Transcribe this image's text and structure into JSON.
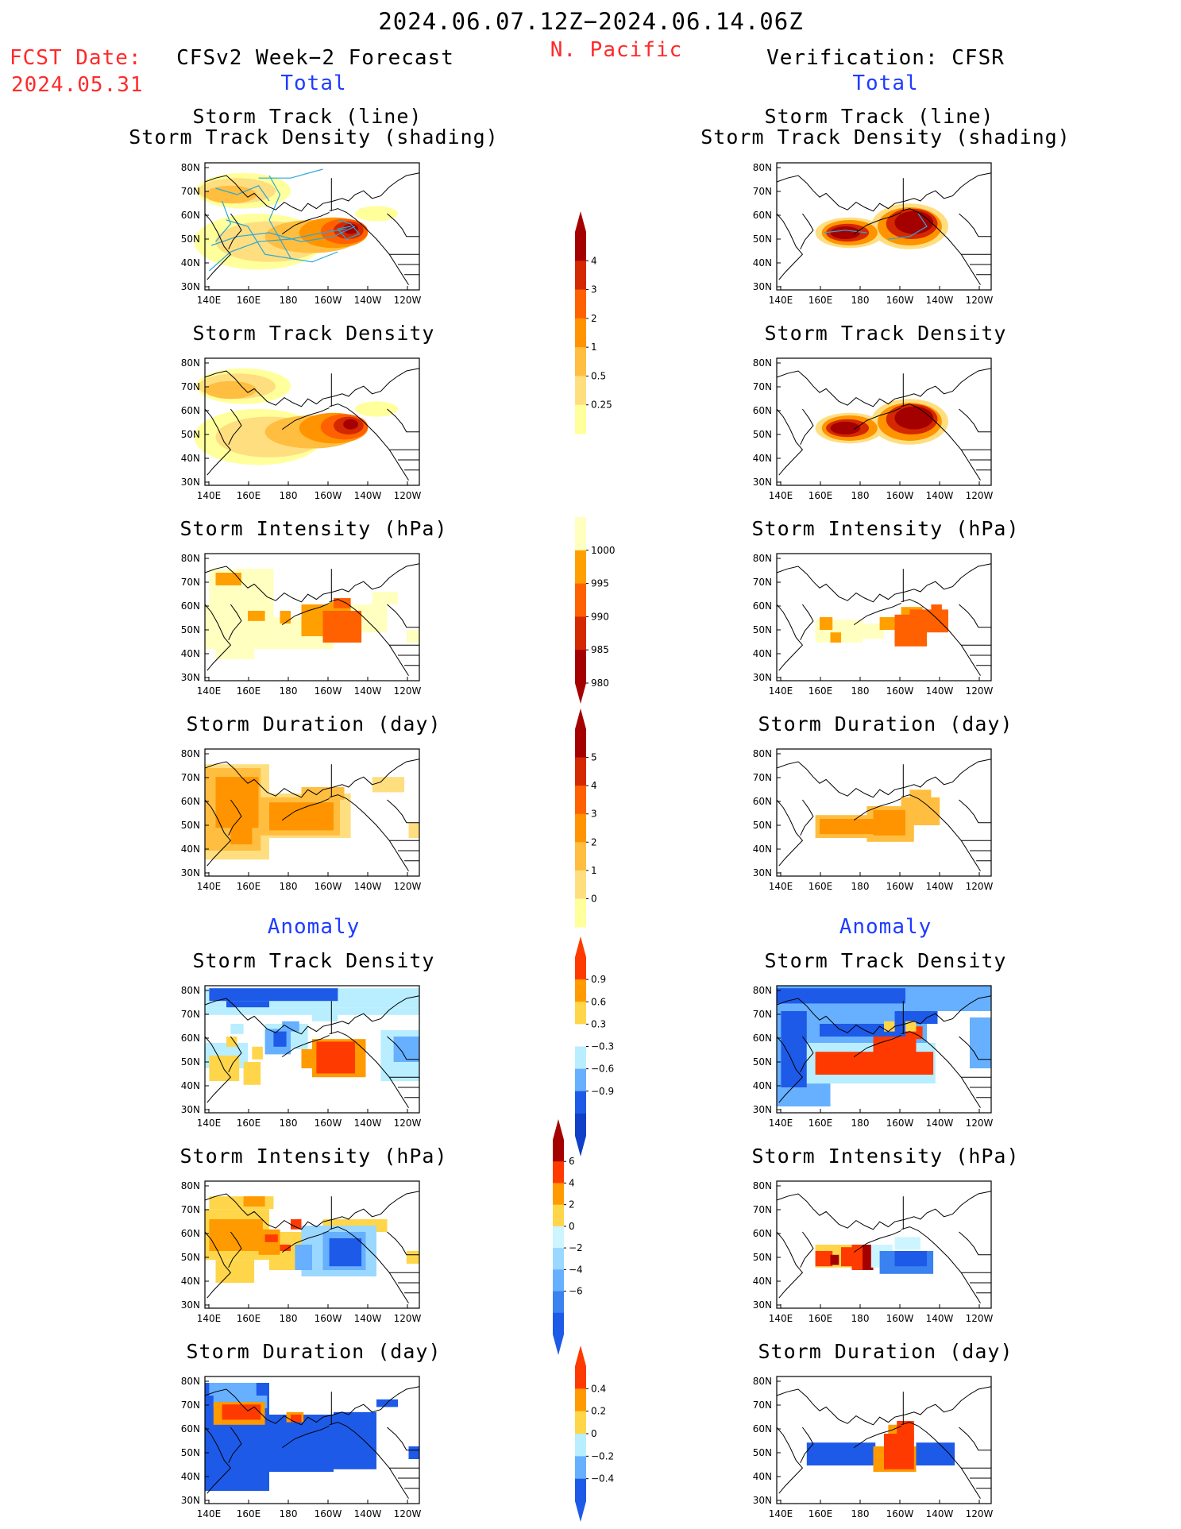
{
  "header": {
    "date_range": "2024.06.07.12Z−2024.06.14.06Z",
    "region": "N. Pacific",
    "fcst_label": "FCST Date:",
    "fcst_date": "2024.05.31",
    "left_title": "CFSv2 Week−2 Forecast",
    "right_title": "Verification: CFSR",
    "total_label": "Total",
    "anomaly_label": "Anomaly"
  },
  "axes": {
    "lat_ticks": [
      "80N",
      "70N",
      "60N",
      "50N",
      "40N",
      "30N"
    ],
    "lon_ticks": [
      "140E",
      "160E",
      "180",
      "160W",
      "140W",
      "120W"
    ]
  },
  "panel_titles": {
    "track_line": "Storm Track (line)",
    "track_shading": "Storm Track Density (shading)",
    "density": "Storm Track Density",
    "intensity": "Storm Intensity (hPa)",
    "duration": "Storm Duration (day)"
  },
  "colors": {
    "title_red": "#ff2a2a",
    "title_blue": "#1e3cff",
    "track_line": "#2aa8d8"
  },
  "colorbars": [
    {
      "id": "density_total",
      "arrow_top": true,
      "arrow_bottom": false,
      "labels": [
        "4",
        "3",
        "2",
        "1",
        "0.5",
        "0.25"
      ],
      "colors": [
        "#a50000",
        "#d42800",
        "#ff6000",
        "#ff9400",
        "#ffbe40",
        "#ffde80",
        "#ffff9c"
      ]
    },
    {
      "id": "intensity_total",
      "arrow_top": false,
      "arrow_bottom": true,
      "labels": [
        "1000",
        "995",
        "990",
        "985",
        "980"
      ],
      "colors": [
        "#ffffc0",
        "#ffa000",
        "#ff6000",
        "#d42800",
        "#a50000"
      ]
    },
    {
      "id": "duration_total",
      "arrow_top": true,
      "arrow_bottom": false,
      "labels": [
        "5",
        "4",
        "3",
        "2",
        "1",
        "0"
      ],
      "colors": [
        "#a50000",
        "#d42800",
        "#ff6000",
        "#ff9400",
        "#ffbe40",
        "#ffde80",
        "#ffff9c"
      ]
    },
    {
      "id": "density_anom",
      "arrow_top": true,
      "arrow_bottom": true,
      "labels": [
        "0.9",
        "0.6",
        "0.3",
        "−0.3",
        "−0.6",
        "−0.9"
      ],
      "colors": [
        "#ff3a00",
        "#ff9a00",
        "#ffd64a",
        "#ffffff",
        "#b8eeff",
        "#66b0ff",
        "#1e5ae8",
        "#1040c8"
      ]
    },
    {
      "id": "intensity_anom",
      "arrow_top": true,
      "arrow_bottom": true,
      "labels": [
        "6",
        "4",
        "2",
        "0",
        "−2",
        "−4",
        "−6"
      ],
      "colors": [
        "#a50000",
        "#ff3a00",
        "#ff9a00",
        "#ffd64a",
        "#cdf5ff",
        "#9ad8ff",
        "#66b0ff",
        "#3a82f0",
        "#1e5ae8"
      ]
    },
    {
      "id": "duration_anom",
      "arrow_top": true,
      "arrow_bottom": true,
      "labels": [
        "0.4",
        "0.2",
        "0",
        "−0.2",
        "−0.4"
      ],
      "colors": [
        "#ff3a00",
        "#ff9a00",
        "#ffd64a",
        "#b8eeff",
        "#66b0ff",
        "#1e5ae8"
      ]
    }
  ]
}
